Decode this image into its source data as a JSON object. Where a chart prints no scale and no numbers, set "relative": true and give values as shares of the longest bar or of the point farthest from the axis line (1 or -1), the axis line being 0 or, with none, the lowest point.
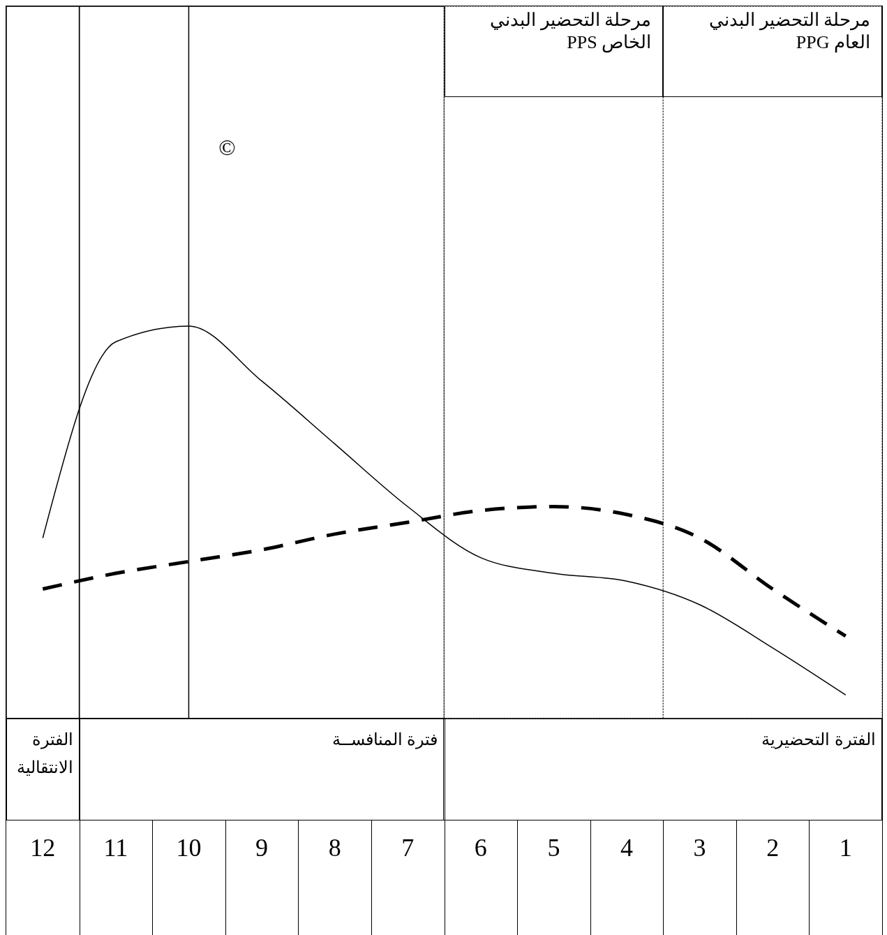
{
  "chart_data": {
    "type": "line",
    "relative": true,
    "marker": "none",
    "categories": [
      "12",
      "11",
      "10",
      "9",
      "8",
      "7",
      "6",
      "5",
      "4",
      "3",
      "2",
      "1"
    ],
    "series": [
      {
        "color": "#000000",
        "line_style": "solid",
        "values": [
          0.46,
          0.96,
          1,
          0.86,
          0.7,
          0.54,
          0.41,
          0.37,
          0.35,
          0.29,
          0.18,
          0.06
        ]
      },
      {
        "color": "#000000",
        "line_style": "dashed",
        "values": [
          0.33,
          0.37,
          0.4,
          0.43,
          0.47,
          0.5,
          0.53,
          0.54,
          0.52,
          0.46,
          0.33,
          0.21
        ]
      }
    ],
    "bands": [
      {
        "axis": "x",
        "from": "6",
        "to": "1",
        "label": "الفترة التحضيرية",
        "color": "#ffffff"
      },
      {
        "axis": "x",
        "from": "11",
        "to": "7",
        "label": "فترة المنافســة",
        "color": "#ffffff"
      },
      {
        "axis": "x",
        "from": "12",
        "to": "12",
        "label": "الفترة الانتقالية",
        "color": "#ffffff"
      },
      {
        "axis": "x",
        "from": "6",
        "to": "4",
        "label": "مرحلة التحضير البدني الخاص PPS",
        "color": "#ffffff"
      },
      {
        "axis": "x",
        "from": "3",
        "to": "1",
        "label": "مرحلة التحضير البدني العام PPG",
        "color": "#ffffff"
      }
    ],
    "ref_lines": [
      {
        "axis": "x",
        "value": "10",
        "label": "©"
      }
    ]
  }
}
